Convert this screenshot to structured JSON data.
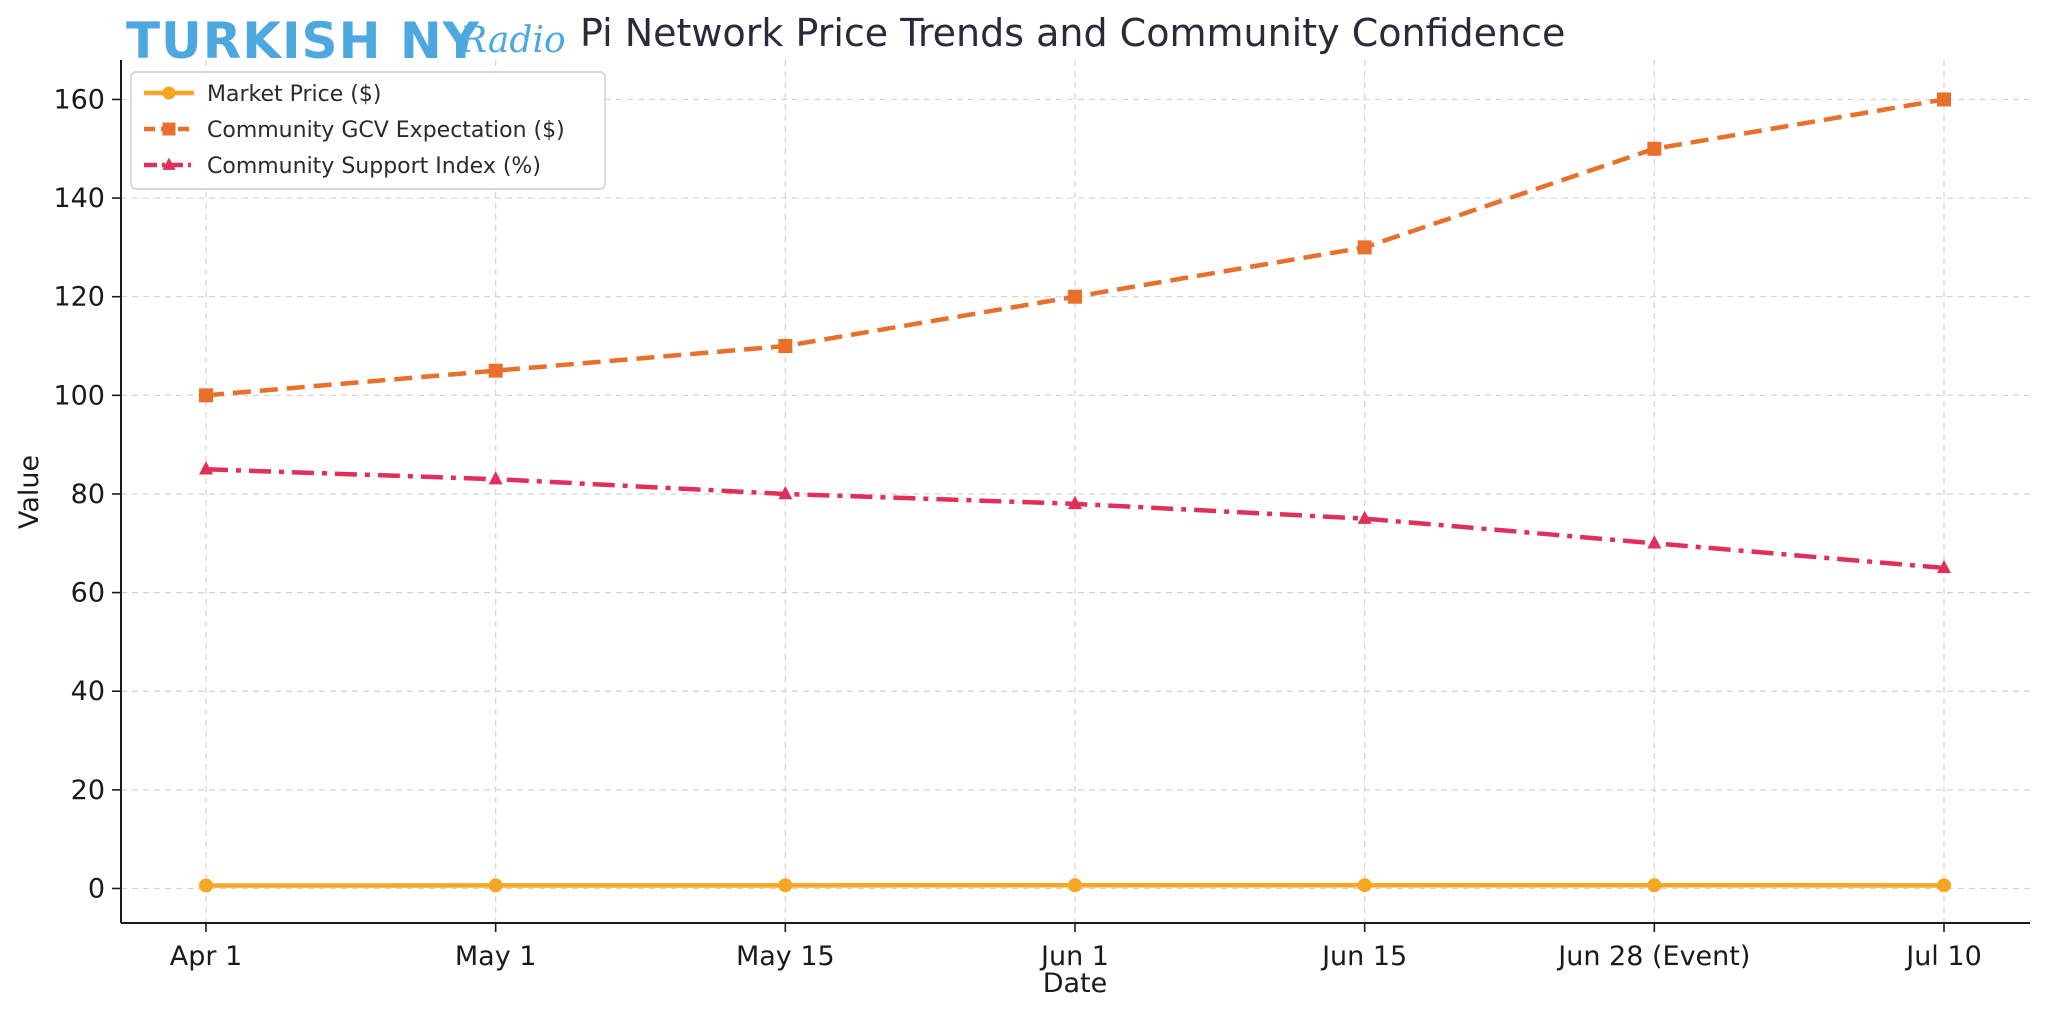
{
  "logo": {
    "main": "TURKISH NY",
    "script": "Radio"
  },
  "chart_data": {
    "type": "line",
    "title": "Pi Network Price Trends and Community Confidence",
    "xlabel": "Date",
    "ylabel": "Value",
    "categories": [
      "Apr 1",
      "May 1",
      "May 15",
      "Jun 1",
      "Jun 15",
      "Jun 28 (Event)",
      "Jul 10"
    ],
    "ylim": [
      -7,
      168
    ],
    "yticks": [
      0,
      20,
      40,
      60,
      80,
      100,
      120,
      140,
      160
    ],
    "ytick_labels": [
      "0",
      "20",
      "40",
      "60",
      "80",
      "100",
      "120",
      "140",
      "160"
    ],
    "grid": true,
    "legend_position": "top-left",
    "series": [
      {
        "name": "Market Price ($)",
        "values": [
          0.6,
          0.62,
          0.64,
          0.65,
          0.66,
          0.65,
          0.64
        ],
        "color": "#f5a623",
        "line_style": "solid",
        "marker": "circle"
      },
      {
        "name": "Community GCV Expectation ($)",
        "values": [
          100,
          105,
          110,
          120,
          130,
          150,
          160
        ],
        "color": "#e8702a",
        "line_style": "dashed",
        "marker": "square"
      },
      {
        "name": "Community Support Index (%)",
        "values": [
          85,
          83,
          80,
          78,
          75,
          70,
          65
        ],
        "color": "#e0305a",
        "line_style": "dashdot",
        "marker": "triangle"
      }
    ]
  }
}
